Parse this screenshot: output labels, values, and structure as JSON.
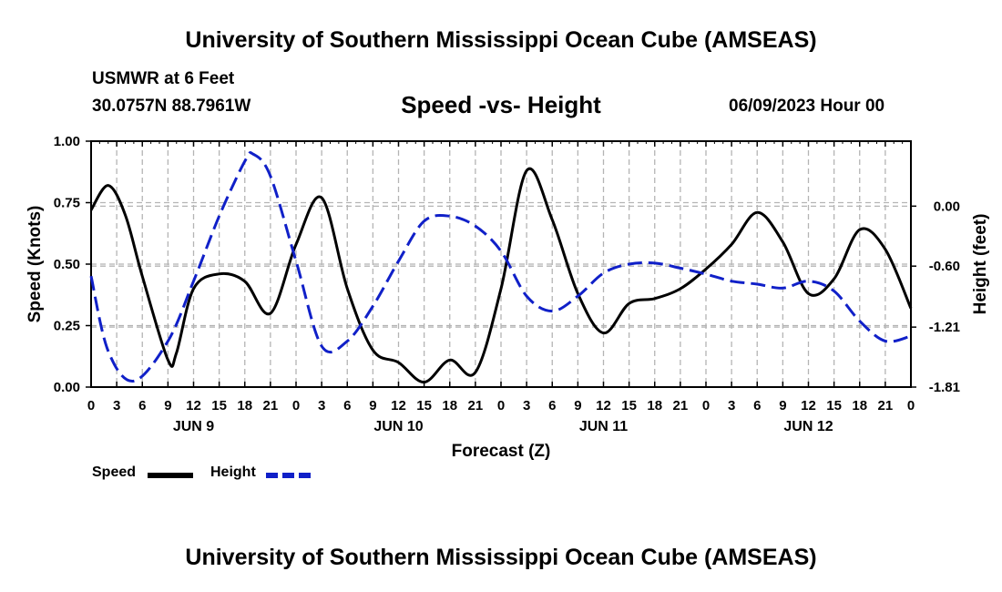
{
  "header": {
    "title": "University of Southern Mississippi Ocean Cube (AMSEAS)",
    "station": "USMWR at 6 Feet",
    "coords": "30.0757N  88.7961W",
    "subtitle": "Speed -vs- Height",
    "datetime": "06/09/2023 Hour 00"
  },
  "footer": {
    "title": "University of Southern Mississippi Ocean Cube (AMSEAS)"
  },
  "colors": {
    "speed": "#000000",
    "height": "#1020c8",
    "grid": "#b4b4b4"
  },
  "chart_data": {
    "type": "line",
    "xlabel": "Forecast (Z)",
    "ylabel": "Speed (Knots)",
    "ylabel_right": "Height (feet)",
    "x_range_hours": [
      0,
      96
    ],
    "ylim": [
      0,
      1
    ],
    "ylim_right": [
      -1.81,
      0.65
    ],
    "x_ticks": [
      0,
      3,
      6,
      9,
      12,
      15,
      18,
      21,
      24,
      27,
      30,
      33,
      36,
      39,
      42,
      45,
      48,
      51,
      54,
      57,
      60,
      63,
      66,
      69,
      72,
      75,
      78,
      81,
      84,
      87,
      90,
      93,
      96
    ],
    "x_tick_labels": [
      "0",
      "3",
      "6",
      "9",
      "12",
      "15",
      "18",
      "21",
      "0",
      "3",
      "6",
      "9",
      "12",
      "15",
      "18",
      "21",
      "0",
      "3",
      "6",
      "9",
      "12",
      "15",
      "18",
      "21",
      "0",
      "3",
      "6",
      "9",
      "12",
      "15",
      "18",
      "21",
      "0"
    ],
    "date_labels": [
      {
        "label": "JUN 9",
        "hour": 12
      },
      {
        "label": "JUN 10",
        "hour": 36
      },
      {
        "label": "JUN 11",
        "hour": 60
      },
      {
        "label": "JUN 12",
        "hour": 84
      }
    ],
    "y_ticks": [
      0,
      0.25,
      0.5,
      0.75,
      1.0
    ],
    "y_tick_labels": [
      "0.00",
      "0.25",
      "0.50",
      "0.75",
      "1.00"
    ],
    "y_right_ticks": [
      0.0,
      -0.6,
      -1.21,
      -1.81
    ],
    "y_right_tick_labels": [
      "0.00",
      "-0.60",
      "-1.21",
      "-1.81"
    ],
    "series": [
      {
        "name": "Speed",
        "axis": "left",
        "style": "solid",
        "x": [
          0,
          2,
          4,
          6,
          9,
          10,
          12,
          15,
          18,
          21,
          24,
          27,
          30,
          33,
          36,
          39,
          42,
          45,
          48,
          51,
          54,
          57,
          60,
          63,
          66,
          69,
          72,
          75,
          78,
          81,
          84,
          87,
          90,
          93,
          96
        ],
        "values": [
          0.72,
          0.82,
          0.7,
          0.45,
          0.11,
          0.14,
          0.4,
          0.46,
          0.43,
          0.3,
          0.58,
          0.77,
          0.4,
          0.15,
          0.1,
          0.02,
          0.11,
          0.06,
          0.4,
          0.88,
          0.68,
          0.38,
          0.22,
          0.34,
          0.36,
          0.4,
          0.48,
          0.58,
          0.71,
          0.59,
          0.38,
          0.44,
          0.64,
          0.56,
          0.32
        ]
      },
      {
        "name": "Height",
        "axis": "right",
        "style": "dashed",
        "x": [
          0,
          2,
          5,
          9,
          12,
          15,
          18,
          19,
          21,
          24,
          27,
          30,
          33,
          36,
          39,
          42,
          45,
          48,
          51,
          54,
          57,
          60,
          63,
          66,
          69,
          72,
          75,
          78,
          81,
          84,
          87,
          90,
          93,
          96
        ],
        "values": [
          -0.7,
          -1.45,
          -1.75,
          -1.35,
          -0.75,
          -0.1,
          0.45,
          0.52,
          0.3,
          -0.55,
          -1.4,
          -1.35,
          -1.0,
          -0.55,
          -0.15,
          -0.1,
          -0.2,
          -0.45,
          -0.9,
          -1.05,
          -0.9,
          -0.67,
          -0.58,
          -0.57,
          -0.62,
          -0.68,
          -0.75,
          -0.78,
          -0.82,
          -0.75,
          -0.85,
          -1.15,
          -1.35,
          -1.3
        ]
      }
    ],
    "legend": [
      {
        "label": "Speed",
        "style": "solid"
      },
      {
        "label": "Height",
        "style": "dashed"
      }
    ]
  }
}
